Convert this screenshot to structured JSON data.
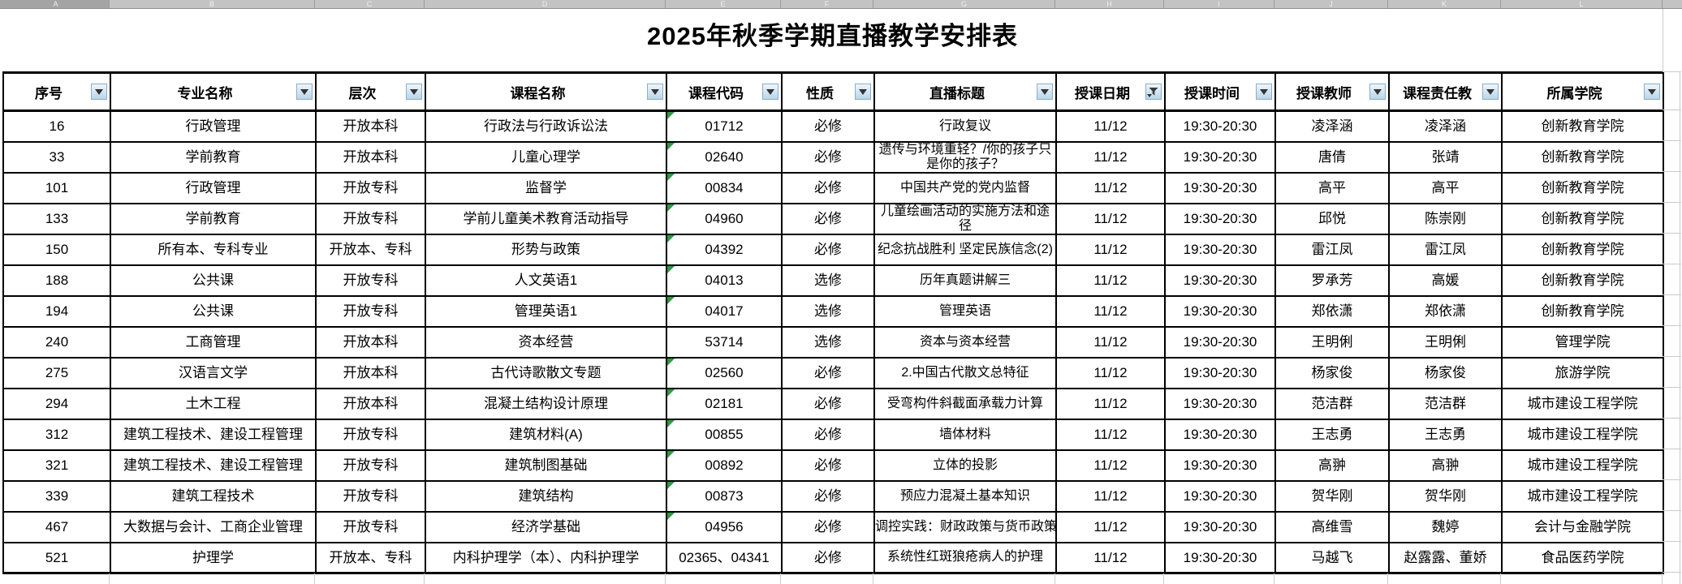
{
  "app": {
    "title": "2025年秋季学期直播教学安排表"
  },
  "column_strip": {
    "letters": [
      "A",
      "B",
      "C",
      "D",
      "E",
      "F",
      "G",
      "H",
      "I",
      "J",
      "K",
      "L"
    ]
  },
  "icons": {
    "dropdown": "filter-dropdown-icon",
    "funnel": "filter-funnel-icon"
  },
  "table": {
    "columns": [
      {
        "key": "seq",
        "label": "序号",
        "filter": "dropdown"
      },
      {
        "key": "major",
        "label": "专业名称",
        "filter": "dropdown"
      },
      {
        "key": "level",
        "label": "层次",
        "filter": "dropdown"
      },
      {
        "key": "course",
        "label": "课程名称",
        "filter": "dropdown"
      },
      {
        "key": "code",
        "label": "课程代码",
        "filter": "dropdown"
      },
      {
        "key": "nature",
        "label": "性质",
        "filter": "dropdown"
      },
      {
        "key": "live_title",
        "label": "直播标题",
        "filter": "dropdown"
      },
      {
        "key": "date",
        "label": "授课日期",
        "filter": "funnel"
      },
      {
        "key": "time",
        "label": "授课时间",
        "filter": "dropdown"
      },
      {
        "key": "teacher",
        "label": "授课教师",
        "filter": "dropdown"
      },
      {
        "key": "resp_teacher",
        "label": "课程责任教",
        "filter": "dropdown"
      },
      {
        "key": "college",
        "label": "所属学院",
        "filter": "dropdown"
      }
    ],
    "rows": [
      {
        "seq": "16",
        "major": "行政管理",
        "level": "开放本科",
        "course": "行政法与行政诉讼法",
        "code": "01712",
        "code_flag": true,
        "nature": "必修",
        "live_title": "行政复议",
        "date": "11/12",
        "time": "19:30-20:30",
        "teacher": "凌泽涵",
        "resp_teacher": "凌泽涵",
        "college": "创新教育学院"
      },
      {
        "seq": "33",
        "major": "学前教育",
        "level": "开放本科",
        "course": "儿童心理学",
        "code": "02640",
        "code_flag": true,
        "nature": "必修",
        "live_title": "遗传与环境重轻？/你的孩子只是你的孩子？",
        "date": "11/12",
        "time": "19:30-20:30",
        "teacher": "唐倩",
        "resp_teacher": "张靖",
        "college": "创新教育学院"
      },
      {
        "seq": "101",
        "major": "行政管理",
        "level": "开放专科",
        "course": "监督学",
        "code": "00834",
        "code_flag": true,
        "nature": "必修",
        "live_title": "中国共产党的党内监督",
        "date": "11/12",
        "time": "19:30-20:30",
        "teacher": "高平",
        "resp_teacher": "高平",
        "college": "创新教育学院"
      },
      {
        "seq": "133",
        "major": "学前教育",
        "level": "开放专科",
        "course": "学前儿童美术教育活动指导",
        "code": "04960",
        "code_flag": true,
        "nature": "必修",
        "live_title": "儿童绘画活动的实施方法和途径",
        "date": "11/12",
        "time": "19:30-20:30",
        "teacher": "邱悦",
        "resp_teacher": "陈崇刚",
        "college": "创新教育学院"
      },
      {
        "seq": "150",
        "major": "所有本、专科专业",
        "level": "开放本、专科",
        "course": "形势与政策",
        "code": "04392",
        "code_flag": true,
        "nature": "必修",
        "live_title": "纪念抗战胜利 坚定民族信念(2)",
        "date": "11/12",
        "time": "19:30-20:30",
        "teacher": "雷江凤",
        "resp_teacher": "雷江凤",
        "college": "创新教育学院"
      },
      {
        "seq": "188",
        "major": "公共课",
        "level": "开放专科",
        "course": "人文英语1",
        "code": "04013",
        "code_flag": true,
        "nature": "选修",
        "live_title": "历年真题讲解三",
        "date": "11/12",
        "time": "19:30-20:30",
        "teacher": "罗承芳",
        "resp_teacher": "高媛",
        "college": "创新教育学院"
      },
      {
        "seq": "194",
        "major": "公共课",
        "level": "开放专科",
        "course": "管理英语1",
        "code": "04017",
        "code_flag": true,
        "nature": "选修",
        "live_title": "管理英语",
        "date": "11/12",
        "time": "19:30-20:30",
        "teacher": "郑依潇",
        "resp_teacher": "郑依潇",
        "college": "创新教育学院"
      },
      {
        "seq": "240",
        "major": "工商管理",
        "level": "开放本科",
        "course": "资本经营",
        "code": "53714",
        "code_flag": false,
        "nature": "选修",
        "live_title": "资本与资本经营",
        "date": "11/12",
        "time": "19:30-20:30",
        "teacher": "王明俐",
        "resp_teacher": "王明俐",
        "college": "管理学院"
      },
      {
        "seq": "275",
        "major": "汉语言文学",
        "level": "开放本科",
        "course": "古代诗歌散文专题",
        "code": "02560",
        "code_flag": true,
        "nature": "必修",
        "live_title": "2.中国古代散文总特征",
        "date": "11/12",
        "time": "19:30-20:30",
        "teacher": "杨家俊",
        "resp_teacher": "杨家俊",
        "college": "旅游学院"
      },
      {
        "seq": "294",
        "major": "土木工程",
        "level": "开放本科",
        "course": "混凝土结构设计原理",
        "code": "02181",
        "code_flag": true,
        "nature": "必修",
        "live_title": "受弯构件斜截面承载力计算",
        "date": "11/12",
        "time": "19:30-20:30",
        "teacher": "范洁群",
        "resp_teacher": "范洁群",
        "college": "城市建设工程学院"
      },
      {
        "seq": "312",
        "major": "建筑工程技术、建设工程管理",
        "level": "开放专科",
        "course": "建筑材料(A)",
        "code": "00855",
        "code_flag": true,
        "nature": "必修",
        "live_title": "墙体材料",
        "date": "11/12",
        "time": "19:30-20:30",
        "teacher": "王志勇",
        "resp_teacher": "王志勇",
        "college": "城市建设工程学院"
      },
      {
        "seq": "321",
        "major": "建筑工程技术、建设工程管理",
        "level": "开放专科",
        "course": "建筑制图基础",
        "code": "00892",
        "code_flag": true,
        "nature": "必修",
        "live_title": "立体的投影",
        "date": "11/12",
        "time": "19:30-20:30",
        "teacher": "高翀",
        "resp_teacher": "高翀",
        "college": "城市建设工程学院"
      },
      {
        "seq": "339",
        "major": "建筑工程技术",
        "level": "开放专科",
        "course": "建筑结构",
        "code": "00873",
        "code_flag": true,
        "nature": "必修",
        "live_title": "预应力混凝土基本知识",
        "date": "11/12",
        "time": "19:30-20:30",
        "teacher": "贺华刚",
        "resp_teacher": "贺华刚",
        "college": "城市建设工程学院"
      },
      {
        "seq": "467",
        "major": "大数据与会计、工商企业管理",
        "level": "开放专科",
        "course": "经济学基础",
        "code": "04956",
        "code_flag": true,
        "nature": "必修",
        "live_title": "调控实践：财政政策与货币政策",
        "clip": true,
        "date": "11/12",
        "time": "19:30-20:30",
        "teacher": "高维雪",
        "resp_teacher": "魏婷",
        "college": "会计与金融学院"
      },
      {
        "seq": "521",
        "major": "护理学",
        "level": "开放本、专科",
        "course": "内科护理学（本）、内科护理学",
        "code": "02365、04341",
        "code_flag": false,
        "nature": "必修",
        "live_title": "系统性红斑狼疮病人的护理",
        "date": "11/12",
        "time": "19:30-20:30",
        "teacher": "马越飞",
        "resp_teacher": "赵露露、董娇",
        "college": "食品医药学院"
      }
    ]
  }
}
